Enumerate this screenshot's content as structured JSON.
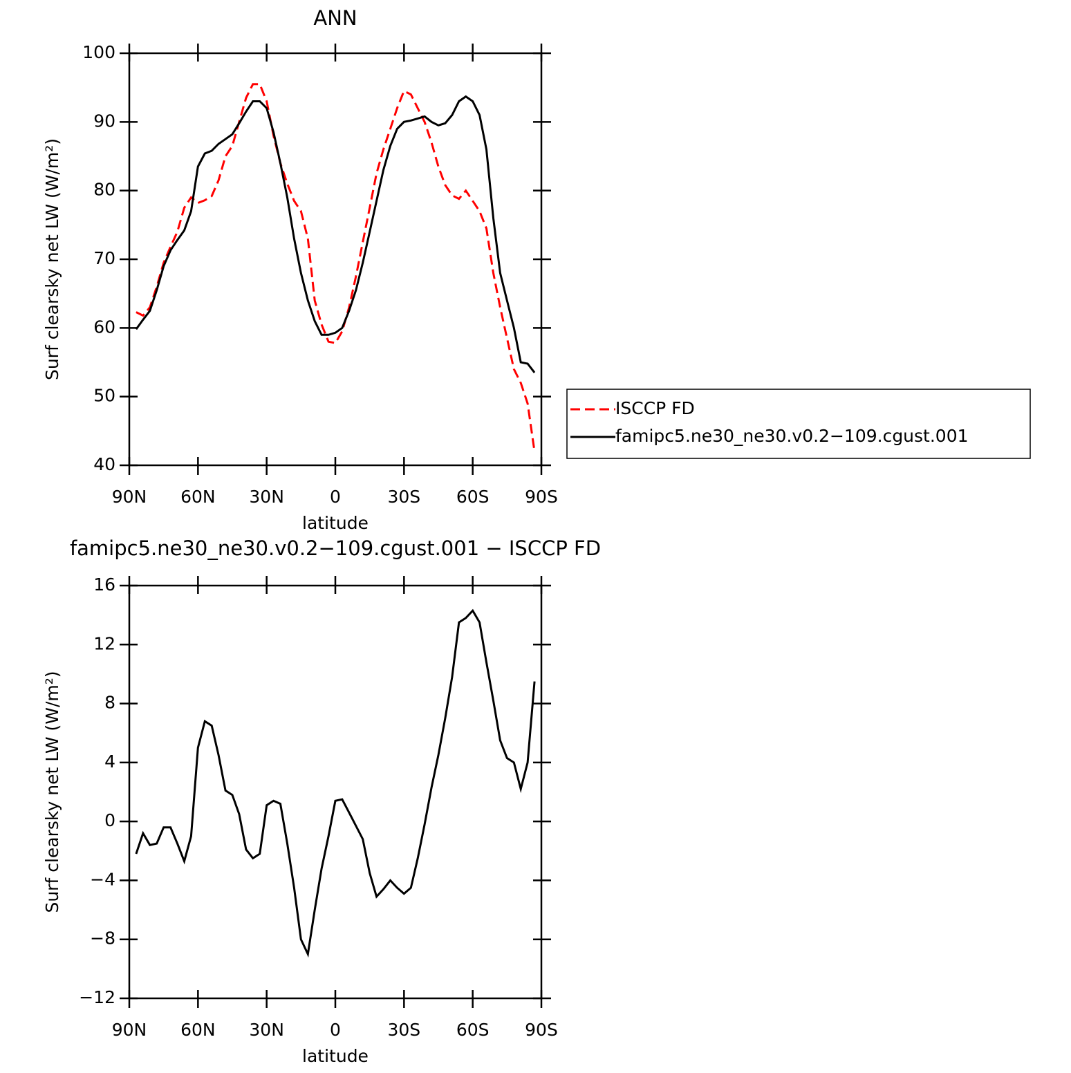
{
  "chart_data": [
    {
      "type": "line",
      "title": "ANN",
      "x_label": "latitude",
      "y_label": "Surf clearsky net LW (W/m²)",
      "x": [
        87,
        84,
        81,
        78,
        75,
        72,
        69,
        66,
        63,
        60,
        57,
        54,
        51,
        48,
        45,
        42,
        39,
        36,
        33,
        30,
        27,
        24,
        21,
        18,
        15,
        12,
        9,
        6,
        3,
        0,
        -3,
        -6,
        -9,
        -12,
        -15,
        -18,
        -21,
        -24,
        -27,
        -30,
        -33,
        -36,
        -39,
        -42,
        -45,
        -48,
        -51,
        -54,
        -57,
        -60,
        -63,
        -66,
        -69,
        -72,
        -75,
        -78,
        -81,
        -84,
        -87
      ],
      "xlim": [
        90,
        -90
      ],
      "xticks": [
        {
          "value": 90,
          "label": "90N"
        },
        {
          "value": 60,
          "label": "60N"
        },
        {
          "value": 30,
          "label": "30N"
        },
        0,
        {
          "value": -30,
          "label": "30S"
        },
        {
          "value": -60,
          "label": "60S"
        },
        {
          "value": -90,
          "label": "90S"
        }
      ],
      "ylim": [
        40,
        100
      ],
      "yticks": [
        40,
        50,
        60,
        70,
        80,
        90,
        100
      ],
      "legend": "right",
      "series": [
        {
          "name": "ISCCP FD",
          "color": "#ff0000",
          "line_style": "dashed",
          "values": [
            62.3,
            61.8,
            63,
            66,
            69.5,
            71.8,
            74,
            77.5,
            79,
            78.2,
            78.6,
            79.2,
            81.5,
            85,
            86.5,
            90,
            93.5,
            95.5,
            95.5,
            93,
            88,
            84,
            81,
            78.5,
            77,
            73,
            64,
            60.5,
            58,
            57.8,
            59.5,
            63,
            67.5,
            72.5,
            77.5,
            82.5,
            86,
            89,
            92,
            94.5,
            94,
            92,
            90,
            87,
            83.5,
            80.8,
            79.3,
            78.8,
            80,
            78.5,
            77,
            74.5,
            68,
            63,
            58.5,
            54,
            52,
            49,
            42
          ]
        },
        {
          "name": "famipc5.ne30_ne30.v0.2−109.cgust.001",
          "color": "#000000",
          "line_style": "solid",
          "values": [
            59.8,
            61.2,
            62.5,
            65.5,
            69,
            71.3,
            72.8,
            74.2,
            77,
            83.5,
            85.4,
            85.8,
            86.8,
            87.5,
            88.2,
            89.8,
            91.5,
            93,
            93,
            92,
            88.5,
            84,
            79,
            73,
            68,
            64,
            61,
            59,
            59,
            59.3,
            60,
            62.5,
            65.5,
            69.5,
            74,
            78.5,
            83,
            86.5,
            89,
            90,
            90.2,
            90.5,
            90.8,
            90,
            89.5,
            89.8,
            91,
            93,
            93.7,
            93,
            91,
            86,
            76,
            68,
            64,
            60,
            55,
            54.8,
            53.5
          ]
        }
      ]
    },
    {
      "type": "line",
      "title": "famipc5.ne30_ne30.v0.2−109.cgust.001 − ISCCP FD",
      "x_label": "latitude",
      "y_label": "Surf clearsky net LW (W/m²)",
      "x": [
        87,
        84,
        81,
        78,
        75,
        72,
        69,
        66,
        63,
        60,
        57,
        54,
        51,
        48,
        45,
        42,
        39,
        36,
        33,
        30,
        27,
        24,
        21,
        18,
        15,
        12,
        9,
        6,
        3,
        0,
        -3,
        -6,
        -9,
        -12,
        -15,
        -18,
        -21,
        -24,
        -27,
        -30,
        -33,
        -36,
        -39,
        -42,
        -45,
        -48,
        -51,
        -54,
        -57,
        -60,
        -63,
        -66,
        -69,
        -72,
        -75,
        -78,
        -81,
        -84,
        -87
      ],
      "xlim": [
        90,
        -90
      ],
      "xticks": [
        {
          "value": 90,
          "label": "90N"
        },
        {
          "value": 60,
          "label": "60N"
        },
        {
          "value": 30,
          "label": "30N"
        },
        0,
        {
          "value": -30,
          "label": "30S"
        },
        {
          "value": -60,
          "label": "60S"
        },
        {
          "value": -90,
          "label": "90S"
        }
      ],
      "ylim": [
        -12,
        16
      ],
      "yticks": [
        {
          "value": -12,
          "label": "−12"
        },
        {
          "value": -8,
          "label": "−8"
        },
        {
          "value": -4,
          "label": "−4"
        },
        0,
        4,
        8,
        12,
        16
      ],
      "series": [
        {
          "color": "#000000",
          "line_style": "solid",
          "values": [
            -2.2,
            -0.8,
            -1.6,
            -1.5,
            -0.4,
            -0.4,
            -1.5,
            -2.7,
            -1,
            5.0,
            6.8,
            6.5,
            4.5,
            2.1,
            1.8,
            0.5,
            -1.9,
            -2.5,
            -2.2,
            1.1,
            1.4,
            1.2,
            -1.5,
            -4.5,
            -8,
            -9,
            -6,
            -3.2,
            -1,
            1.4,
            1.5,
            0.6,
            -0.3,
            -1.2,
            -3.5,
            -5.1,
            -4.6,
            -4,
            -4.5,
            -4.9,
            -4.5,
            -2.5,
            -0.2,
            2.3,
            4.5,
            7,
            9.8,
            13.5,
            13.8,
            14.3,
            13.5,
            10.8,
            8.2,
            5.5,
            4.3,
            4.0,
            2.2,
            4,
            9.5
          ]
        }
      ]
    }
  ]
}
